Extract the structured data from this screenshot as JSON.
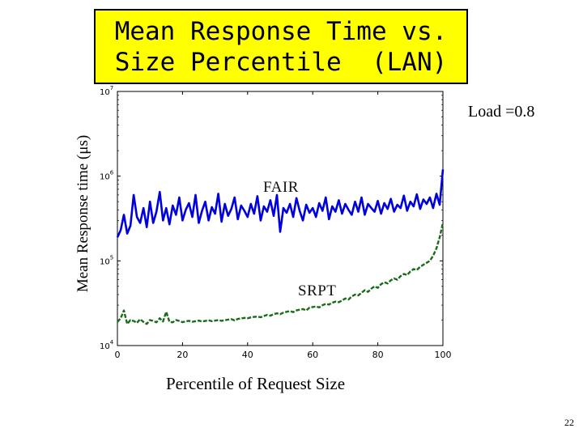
{
  "slide": {
    "title_line1": "Mean Response Time vs.",
    "title_line2": "Size Percentile  (LAN)",
    "load_note": "Load =0.8",
    "page_number": "22",
    "title_bg": "#ffff00"
  },
  "chart_data": {
    "type": "line",
    "xlabel": "Percentile of Request Size",
    "ylabel": "Mean Response time (μs)",
    "xlim": [
      0,
      100
    ],
    "ylim": [
      10000,
      10000000
    ],
    "yscale": "log",
    "xticks": [
      "0",
      "20",
      "40",
      "60",
      "80",
      "100"
    ],
    "yticks": [
      {
        "value": 10000,
        "base": "10",
        "exp": "4"
      },
      {
        "value": 100000,
        "base": "10",
        "exp": "5"
      },
      {
        "value": 1000000,
        "base": "10",
        "exp": "6"
      },
      {
        "value": 10000000,
        "base": "10",
        "exp": "7"
      }
    ],
    "grid": false,
    "series": [
      {
        "name": "FAIR",
        "color": "#0000dd",
        "x": [
          0,
          1,
          2,
          3,
          4,
          5,
          6,
          7,
          8,
          9,
          10,
          11,
          12,
          13,
          14,
          15,
          16,
          17,
          18,
          19,
          20,
          21,
          22,
          23,
          24,
          25,
          26,
          27,
          28,
          29,
          30,
          31,
          32,
          33,
          34,
          35,
          36,
          37,
          38,
          39,
          40,
          41,
          42,
          43,
          44,
          45,
          46,
          47,
          48,
          49,
          50,
          51,
          52,
          53,
          54,
          55,
          56,
          57,
          58,
          59,
          60,
          61,
          62,
          63,
          64,
          65,
          66,
          67,
          68,
          69,
          70,
          71,
          72,
          73,
          74,
          75,
          76,
          77,
          78,
          79,
          80,
          81,
          82,
          83,
          84,
          85,
          86,
          87,
          88,
          89,
          90,
          91,
          92,
          93,
          94,
          95,
          96,
          97,
          98,
          99,
          100
        ],
        "values": [
          190000,
          230000,
          350000,
          210000,
          260000,
          600000,
          330000,
          280000,
          420000,
          250000,
          500000,
          280000,
          380000,
          650000,
          300000,
          420000,
          270000,
          450000,
          350000,
          560000,
          300000,
          400000,
          480000,
          330000,
          600000,
          280000,
          390000,
          500000,
          300000,
          430000,
          360000,
          620000,
          290000,
          470000,
          340000,
          410000,
          560000,
          310000,
          450000,
          390000,
          330000,
          470000,
          360000,
          580000,
          300000,
          440000,
          380000,
          520000,
          340000,
          600000,
          220000,
          420000,
          370000,
          470000,
          330000,
          550000,
          390000,
          300000,
          460000,
          370000,
          420000,
          330000,
          480000,
          390000,
          560000,
          310000,
          440000,
          380000,
          520000,
          360000,
          470000,
          400000,
          350000,
          500000,
          380000,
          560000,
          350000,
          470000,
          420000,
          380000,
          510000,
          360000,
          480000,
          410000,
          540000,
          380000,
          460000,
          420000,
          590000,
          390000,
          500000,
          440000,
          610000,
          410000,
          530000,
          470000,
          560000,
          420000,
          620000,
          460000,
          1200000
        ]
      },
      {
        "name": "SRPT",
        "color": "#1a6b1a",
        "x": [
          0,
          1,
          2,
          3,
          4,
          5,
          6,
          7,
          8,
          9,
          10,
          11,
          12,
          13,
          14,
          15,
          16,
          17,
          18,
          19,
          20,
          21,
          22,
          23,
          24,
          25,
          26,
          27,
          28,
          29,
          30,
          31,
          32,
          33,
          34,
          35,
          36,
          37,
          38,
          39,
          40,
          41,
          42,
          43,
          44,
          45,
          46,
          47,
          48,
          49,
          50,
          51,
          52,
          53,
          54,
          55,
          56,
          57,
          58,
          59,
          60,
          61,
          62,
          63,
          64,
          65,
          66,
          67,
          68,
          69,
          70,
          71,
          72,
          73,
          74,
          75,
          76,
          77,
          78,
          79,
          80,
          81,
          82,
          83,
          84,
          85,
          86,
          87,
          88,
          89,
          90,
          91,
          92,
          93,
          94,
          95,
          96,
          97,
          98,
          99,
          100
        ],
        "values": [
          19000,
          21000,
          26000,
          18000,
          20000,
          19500,
          18500,
          20500,
          19000,
          18000,
          20000,
          19500,
          18800,
          21000,
          19200,
          25000,
          19000,
          18800,
          20000,
          19500,
          18900,
          19300,
          19600,
          19100,
          19400,
          19700,
          19200,
          19500,
          19900,
          19400,
          19700,
          20000,
          19600,
          19900,
          20200,
          20500,
          19800,
          20600,
          20900,
          21200,
          21000,
          21500,
          21800,
          22000,
          21600,
          22300,
          23000,
          22500,
          23500,
          24000,
          23500,
          24500,
          25000,
          25500,
          24800,
          26000,
          26500,
          27000,
          26000,
          28000,
          28500,
          29000,
          28200,
          30000,
          31000,
          30500,
          32000,
          33000,
          32500,
          34000,
          36000,
          35000,
          38000,
          40000,
          39000,
          42000,
          45000,
          43000,
          47000,
          50000,
          48000,
          53000,
          56000,
          54000,
          59000,
          62000,
          60000,
          66000,
          70000,
          68000,
          75000,
          80000,
          78000,
          85000,
          90000,
          95000,
          100000,
          115000,
          140000,
          190000,
          280000
        ]
      }
    ]
  }
}
